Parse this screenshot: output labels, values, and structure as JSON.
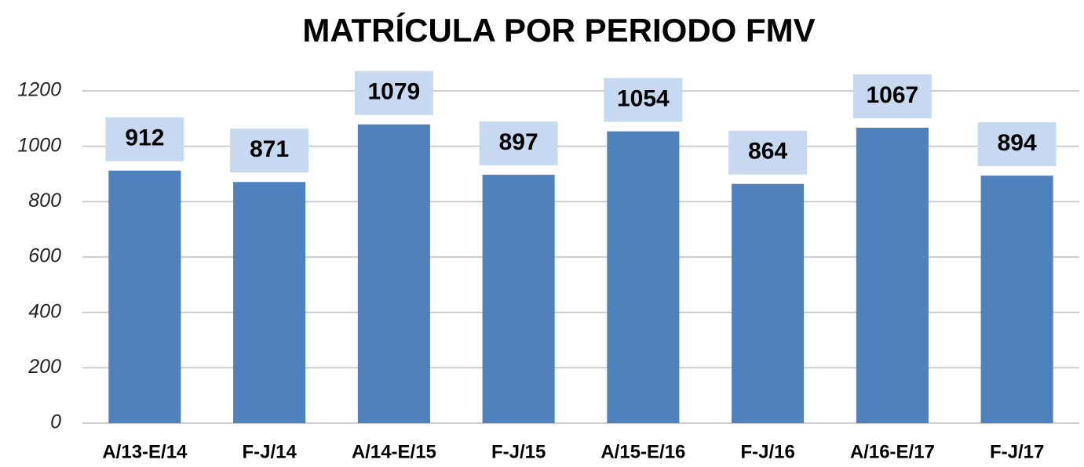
{
  "chart_data": {
    "type": "bar",
    "title": "MATRÍCULA POR PERIODO FMV",
    "categories": [
      "A/13-E/14",
      "F-J/14",
      "A/14-E/15",
      "F-J/15",
      "A/15-E/16",
      "F-J/16",
      "A/16-E/17",
      "F-J/17"
    ],
    "values": [
      912,
      871,
      1079,
      897,
      1054,
      864,
      1067,
      894
    ],
    "color": "#4f81bd",
    "label_box_color": "#c6d9f1",
    "ylim": [
      0,
      1200
    ],
    "yticks": [
      0,
      200,
      400,
      600,
      800,
      1000,
      1200
    ],
    "grid": true
  }
}
